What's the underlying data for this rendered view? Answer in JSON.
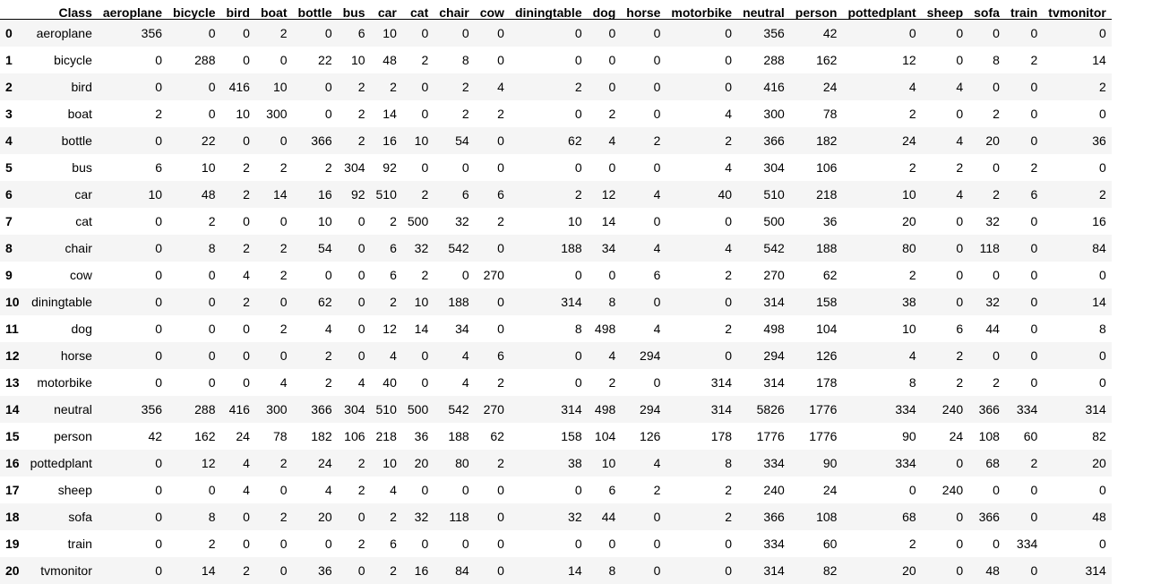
{
  "table": {
    "index_header": "",
    "columns": [
      "Class",
      "aeroplane",
      "bicycle",
      "bird",
      "boat",
      "bottle",
      "bus",
      "car",
      "cat",
      "chair",
      "cow",
      "diningtable",
      "dog",
      "horse",
      "motorbike",
      "neutral",
      "person",
      "pottedplant",
      "sheep",
      "sofa",
      "train",
      "tvmonitor"
    ],
    "rows": [
      {
        "index": "0",
        "cells": [
          "aeroplane",
          "356",
          "0",
          "0",
          "2",
          "0",
          "6",
          "10",
          "0",
          "0",
          "0",
          "0",
          "0",
          "0",
          "0",
          "356",
          "42",
          "0",
          "0",
          "0",
          "0",
          "0"
        ]
      },
      {
        "index": "1",
        "cells": [
          "bicycle",
          "0",
          "288",
          "0",
          "0",
          "22",
          "10",
          "48",
          "2",
          "8",
          "0",
          "0",
          "0",
          "0",
          "0",
          "288",
          "162",
          "12",
          "0",
          "8",
          "2",
          "14"
        ]
      },
      {
        "index": "2",
        "cells": [
          "bird",
          "0",
          "0",
          "416",
          "10",
          "0",
          "2",
          "2",
          "0",
          "2",
          "4",
          "2",
          "0",
          "0",
          "0",
          "416",
          "24",
          "4",
          "4",
          "0",
          "0",
          "2"
        ]
      },
      {
        "index": "3",
        "cells": [
          "boat",
          "2",
          "0",
          "10",
          "300",
          "0",
          "2",
          "14",
          "0",
          "2",
          "2",
          "0",
          "2",
          "0",
          "4",
          "300",
          "78",
          "2",
          "0",
          "2",
          "0",
          "0"
        ]
      },
      {
        "index": "4",
        "cells": [
          "bottle",
          "0",
          "22",
          "0",
          "0",
          "366",
          "2",
          "16",
          "10",
          "54",
          "0",
          "62",
          "4",
          "2",
          "2",
          "366",
          "182",
          "24",
          "4",
          "20",
          "0",
          "36"
        ]
      },
      {
        "index": "5",
        "cells": [
          "bus",
          "6",
          "10",
          "2",
          "2",
          "2",
          "304",
          "92",
          "0",
          "0",
          "0",
          "0",
          "0",
          "0",
          "4",
          "304",
          "106",
          "2",
          "2",
          "0",
          "2",
          "0"
        ]
      },
      {
        "index": "6",
        "cells": [
          "car",
          "10",
          "48",
          "2",
          "14",
          "16",
          "92",
          "510",
          "2",
          "6",
          "6",
          "2",
          "12",
          "4",
          "40",
          "510",
          "218",
          "10",
          "4",
          "2",
          "6",
          "2"
        ]
      },
      {
        "index": "7",
        "cells": [
          "cat",
          "0",
          "2",
          "0",
          "0",
          "10",
          "0",
          "2",
          "500",
          "32",
          "2",
          "10",
          "14",
          "0",
          "0",
          "500",
          "36",
          "20",
          "0",
          "32",
          "0",
          "16"
        ]
      },
      {
        "index": "8",
        "cells": [
          "chair",
          "0",
          "8",
          "2",
          "2",
          "54",
          "0",
          "6",
          "32",
          "542",
          "0",
          "188",
          "34",
          "4",
          "4",
          "542",
          "188",
          "80",
          "0",
          "118",
          "0",
          "84"
        ]
      },
      {
        "index": "9",
        "cells": [
          "cow",
          "0",
          "0",
          "4",
          "2",
          "0",
          "0",
          "6",
          "2",
          "0",
          "270",
          "0",
          "0",
          "6",
          "2",
          "270",
          "62",
          "2",
          "0",
          "0",
          "0",
          "0"
        ]
      },
      {
        "index": "10",
        "cells": [
          "diningtable",
          "0",
          "0",
          "2",
          "0",
          "62",
          "0",
          "2",
          "10",
          "188",
          "0",
          "314",
          "8",
          "0",
          "0",
          "314",
          "158",
          "38",
          "0",
          "32",
          "0",
          "14"
        ]
      },
      {
        "index": "11",
        "cells": [
          "dog",
          "0",
          "0",
          "0",
          "2",
          "4",
          "0",
          "12",
          "14",
          "34",
          "0",
          "8",
          "498",
          "4",
          "2",
          "498",
          "104",
          "10",
          "6",
          "44",
          "0",
          "8"
        ]
      },
      {
        "index": "12",
        "cells": [
          "horse",
          "0",
          "0",
          "0",
          "0",
          "2",
          "0",
          "4",
          "0",
          "4",
          "6",
          "0",
          "4",
          "294",
          "0",
          "294",
          "126",
          "4",
          "2",
          "0",
          "0",
          "0"
        ]
      },
      {
        "index": "13",
        "cells": [
          "motorbike",
          "0",
          "0",
          "0",
          "4",
          "2",
          "4",
          "40",
          "0",
          "4",
          "2",
          "0",
          "2",
          "0",
          "314",
          "314",
          "178",
          "8",
          "2",
          "2",
          "0",
          "0"
        ]
      },
      {
        "index": "14",
        "cells": [
          "neutral",
          "356",
          "288",
          "416",
          "300",
          "366",
          "304",
          "510",
          "500",
          "542",
          "270",
          "314",
          "498",
          "294",
          "314",
          "5826",
          "1776",
          "334",
          "240",
          "366",
          "334",
          "314"
        ]
      },
      {
        "index": "15",
        "cells": [
          "person",
          "42",
          "162",
          "24",
          "78",
          "182",
          "106",
          "218",
          "36",
          "188",
          "62",
          "158",
          "104",
          "126",
          "178",
          "1776",
          "1776",
          "90",
          "24",
          "108",
          "60",
          "82"
        ]
      },
      {
        "index": "16",
        "cells": [
          "pottedplant",
          "0",
          "12",
          "4",
          "2",
          "24",
          "2",
          "10",
          "20",
          "80",
          "2",
          "38",
          "10",
          "4",
          "8",
          "334",
          "90",
          "334",
          "0",
          "68",
          "2",
          "20"
        ]
      },
      {
        "index": "17",
        "cells": [
          "sheep",
          "0",
          "0",
          "4",
          "0",
          "4",
          "2",
          "4",
          "0",
          "0",
          "0",
          "0",
          "6",
          "2",
          "2",
          "240",
          "24",
          "0",
          "240",
          "0",
          "0",
          "0"
        ]
      },
      {
        "index": "18",
        "cells": [
          "sofa",
          "0",
          "8",
          "0",
          "2",
          "20",
          "0",
          "2",
          "32",
          "118",
          "0",
          "32",
          "44",
          "0",
          "2",
          "366",
          "108",
          "68",
          "0",
          "366",
          "0",
          "48"
        ]
      },
      {
        "index": "19",
        "cells": [
          "train",
          "0",
          "2",
          "0",
          "0",
          "0",
          "2",
          "6",
          "0",
          "0",
          "0",
          "0",
          "0",
          "0",
          "0",
          "334",
          "60",
          "2",
          "0",
          "0",
          "334",
          "0"
        ]
      },
      {
        "index": "20",
        "cells": [
          "tvmonitor",
          "0",
          "14",
          "2",
          "0",
          "36",
          "0",
          "2",
          "16",
          "84",
          "0",
          "14",
          "8",
          "0",
          "0",
          "314",
          "82",
          "20",
          "0",
          "48",
          "0",
          "314"
        ]
      }
    ]
  }
}
